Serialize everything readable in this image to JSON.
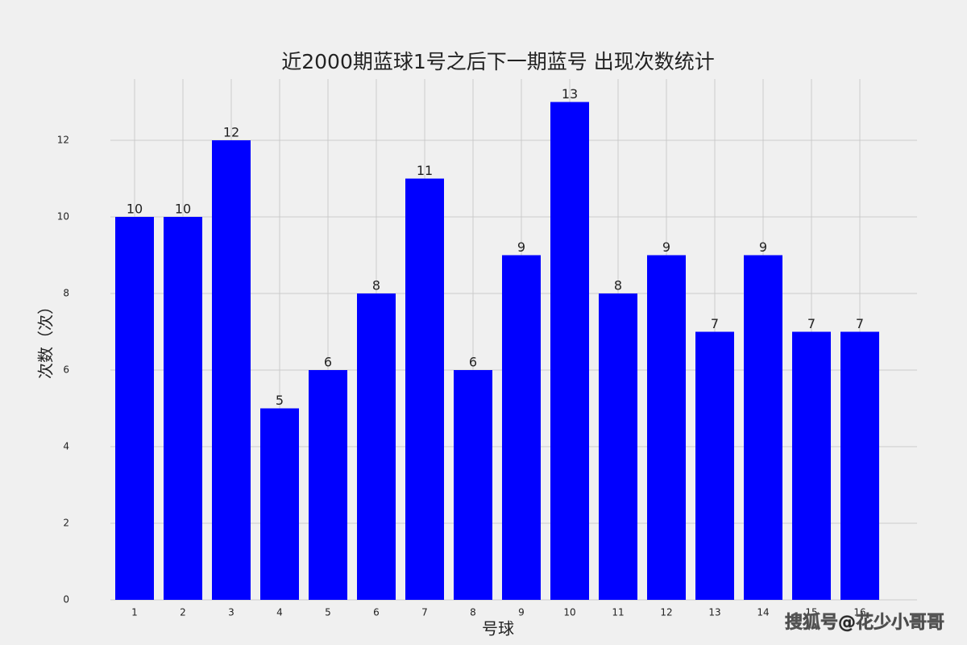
{
  "chart_data": {
    "type": "bar",
    "title": "近2000期蓝球1号之后下一期蓝号 出现次数统计",
    "x_label": "号球",
    "y_label": "次数（次）",
    "categories": [
      "1",
      "2",
      "3",
      "4",
      "5",
      "6",
      "7",
      "8",
      "9",
      "10",
      "11",
      "12",
      "13",
      "14",
      "15",
      "16"
    ],
    "values": [
      10,
      10,
      12,
      5,
      6,
      8,
      11,
      6,
      9,
      13,
      8,
      9,
      7,
      9,
      7,
      7
    ],
    "color": "#0000ff",
    "ylim": [
      0,
      13.6
    ],
    "yticks": [
      0,
      2,
      4,
      6,
      8,
      10,
      12
    ],
    "grid": true
  },
  "watermark": "搜狐号@花少小哥哥"
}
